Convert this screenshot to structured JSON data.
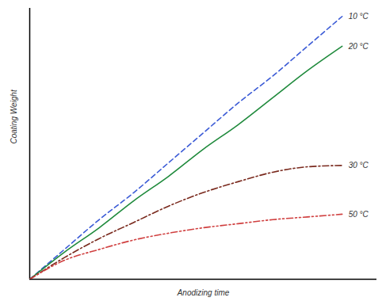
{
  "chart_data": {
    "type": "line",
    "x_label": "Anodizing time",
    "y_label": "Coating Weight",
    "x": [
      0,
      1,
      2,
      3,
      4,
      5,
      6,
      7,
      8,
      9
    ],
    "xlim": [
      0,
      10
    ],
    "ylim": [
      0,
      100
    ],
    "tick_labels": false,
    "grid": false,
    "series": [
      {
        "name": "10 °C",
        "color": "#3b5bd6",
        "line_style": "dashed",
        "values": [
          0,
          11,
          22,
          32,
          43,
          54,
          65,
          75,
          86,
          97
        ]
      },
      {
        "name": "20 °C",
        "color": "#1f8a3c",
        "line_style": "solid",
        "values": [
          0,
          10,
          19,
          29,
          38,
          48,
          57,
          67,
          77,
          86
        ]
      },
      {
        "name": "30 °C",
        "color": "#7a2a1e",
        "line_style": "dashdot",
        "values": [
          0,
          8,
          15,
          21,
          27,
          32,
          36,
          39.5,
          41.5,
          42
        ]
      },
      {
        "name": "50 °C",
        "color": "#d04040",
        "line_style": "dashdotdot",
        "values": [
          0,
          7,
          11,
          14.5,
          17,
          19,
          20.5,
          22,
          23,
          24
        ]
      }
    ]
  }
}
